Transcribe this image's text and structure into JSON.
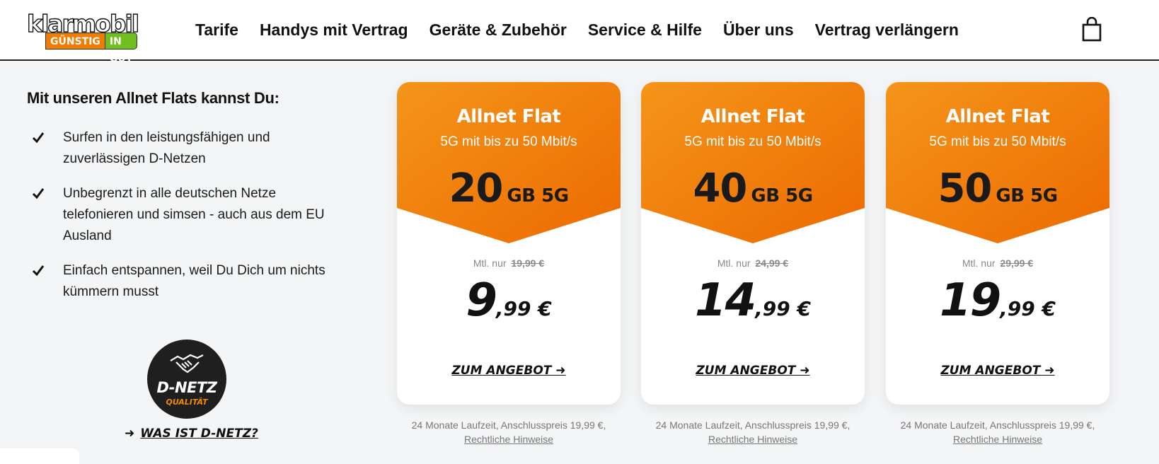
{
  "brand": {
    "logo_word": "klarmobil",
    "tag_left": "GÜNSTIG",
    "tag_right": "IN GUT",
    "colors": {
      "orange": "#f27c00",
      "green": "#6fbf1f",
      "dark": "#1a1a1a"
    }
  },
  "nav": {
    "items": [
      {
        "label": "Tarife"
      },
      {
        "label": "Handys mit Vertrag"
      },
      {
        "label": "Geräte & Zubehör"
      },
      {
        "label": "Service & Hilfe"
      },
      {
        "label": "Über uns"
      },
      {
        "label": "Vertrag verlängern"
      }
    ],
    "cart_icon": "shopping-bag-icon"
  },
  "intro": {
    "heading": "Mit unseren Allnet Flats kannst Du:",
    "features": [
      {
        "text": "Surfen in den leistungsfähigen und zuverlässigen D-Netzen"
      },
      {
        "text": "Unbegrenzt in alle deutschen Netze telefonieren und simsen - auch aus dem EU Ausland"
      },
      {
        "text": "Einfach entspannen, weil Du Dich um nichts kümmern musst"
      }
    ],
    "check_icon": "checkmark-icon"
  },
  "badge": {
    "title": "D-NETZ",
    "subtitle": "QUALITÄT",
    "icon": "handshake-icon",
    "link_arrow": "➜",
    "link_label": "WAS IST D-NETZ?"
  },
  "cards": [
    {
      "title": "Allnet Flat",
      "subtitle": "5G mit bis zu 50 Mbit/s",
      "data_amount": "20",
      "data_unit": "GB 5G",
      "monthly_label": "Mtl. nur",
      "old_price": "19,99 €",
      "price_main": "9",
      "price_cents": ",99 €",
      "cta": "ZUM ANGEBOT ➜",
      "terms": "24 Monate Laufzeit, Anschlusspreis 19,99 €,",
      "terms_link": "Rechtliche Hinweise"
    },
    {
      "title": "Allnet Flat",
      "subtitle": "5G mit bis zu 50 Mbit/s",
      "data_amount": "40",
      "data_unit": "GB 5G",
      "monthly_label": "Mtl. nur",
      "old_price": "24,99 €",
      "price_main": "14",
      "price_cents": ",99 €",
      "cta": "ZUM ANGEBOT ➜",
      "terms": "24 Monate Laufzeit, Anschlusspreis 19,99 €,",
      "terms_link": "Rechtliche Hinweise"
    },
    {
      "title": "Allnet Flat",
      "subtitle": "5G mit bis zu 50 Mbit/s",
      "data_amount": "50",
      "data_unit": "GB 5G",
      "monthly_label": "Mtl. nur",
      "old_price": "29,99 €",
      "price_main": "19",
      "price_cents": ",99 €",
      "cta": "ZUM ANGEBOT ➜",
      "terms": "24 Monate Laufzeit, Anschlusspreis 19,99 €,",
      "terms_link": "Rechtliche Hinweise"
    }
  ]
}
